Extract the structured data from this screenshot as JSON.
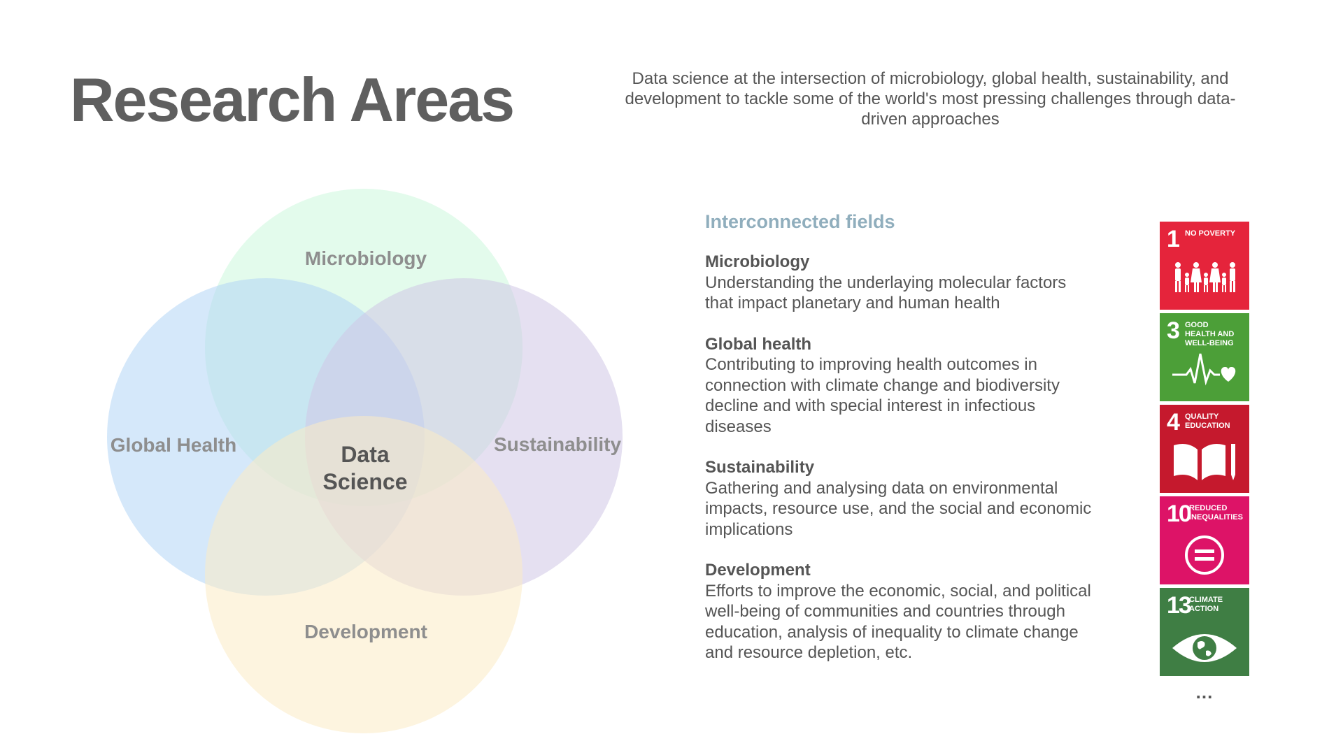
{
  "header": {
    "title": "Research Areas",
    "subtitle": "Data science at the intersection of microbiology, global health, sustainability, and development to tackle some of the world's most pressing challenges through data-driven approaches"
  },
  "venn": {
    "top": "Microbiology",
    "left": "Global Health",
    "right": "Sustainability",
    "bottom": "Development",
    "center_line1": "Data",
    "center_line2": "Science",
    "colors": {
      "microbiology": "#ccf7dc",
      "global_health": "#b3d6f6",
      "sustainability": "#d0c6e6",
      "development": "#fcebc4"
    }
  },
  "fields": {
    "heading": "Interconnected fields",
    "items": [
      {
        "name": "Microbiology",
        "description": "Understanding the underlaying molecular factors that impact planetary and human health"
      },
      {
        "name": "Global health",
        "description": "Contributing to improving health outcomes in connection with climate change and biodiversity decline and with special interest in infectious diseases"
      },
      {
        "name": "Sustainability",
        "description": "Gathering and analysing data on environmental impacts, resource use, and the social and economic implications"
      },
      {
        "name": "Development",
        "description": "Efforts to improve the economic, social, and political well-being of communities and countries through education, analysis of inequality to climate change and resource depletion, etc."
      }
    ]
  },
  "sdgs": {
    "items": [
      {
        "number": "1",
        "label": "No Poverty",
        "color": "#e5243b",
        "icon": "people-family-icon"
      },
      {
        "number": "3",
        "label": "Good Health and Well-Being",
        "color": "#4c9f38",
        "icon": "heartbeat-icon"
      },
      {
        "number": "4",
        "label": "Quality Education",
        "color": "#c5192d",
        "icon": "book-pencil-icon"
      },
      {
        "number": "10",
        "label": "Reduced Inequalities",
        "color": "#dd1367",
        "icon": "equality-circle-icon"
      },
      {
        "number": "13",
        "label": "Climate Action",
        "color": "#3f7e44",
        "icon": "eye-globe-icon"
      }
    ],
    "more": "..."
  }
}
